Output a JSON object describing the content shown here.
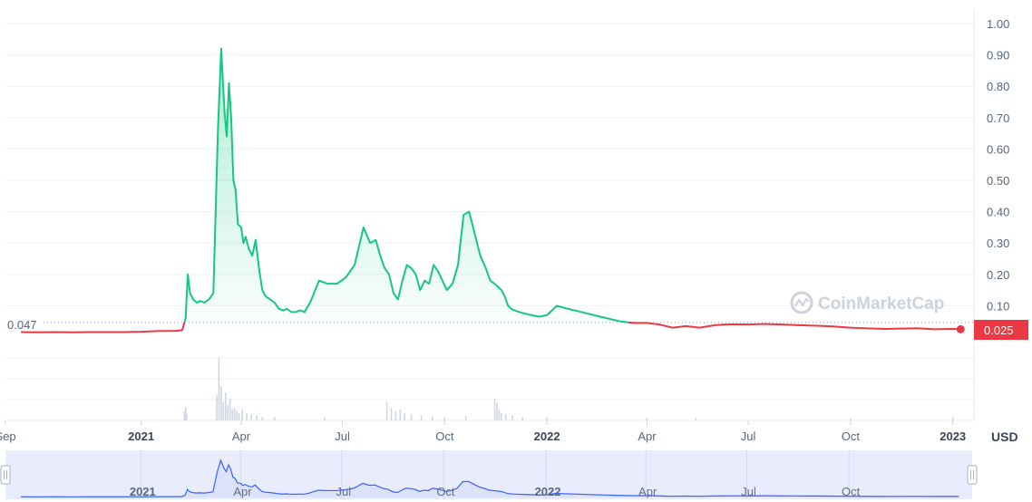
{
  "chart_data": {
    "type": "line",
    "unit": "USD",
    "reference_line": {
      "value": 0.047,
      "label": "0.047"
    },
    "current_price": {
      "value": 0.025,
      "label": "0.025"
    },
    "colors": {
      "above": "#16c784",
      "below": "#ea3943",
      "grid": "#eff2f5",
      "volume": "#cfd6e4",
      "navigator_line": "#3861fb",
      "navigator_fill": "#e8ecfc"
    },
    "ylim": [
      0,
      1.0
    ],
    "y_ticks": [
      "1.00",
      "0.90",
      "0.80",
      "0.70",
      "0.60",
      "0.50",
      "0.40",
      "0.30",
      "0.20",
      "0.10"
    ],
    "x_ticks": [
      {
        "label": "Sep",
        "date": "2020-09-01",
        "bold": false
      },
      {
        "label": "2021",
        "date": "2021-01-01",
        "bold": true
      },
      {
        "label": "Apr",
        "date": "2021-04-01",
        "bold": false
      },
      {
        "label": "Jul",
        "date": "2021-07-01",
        "bold": false
      },
      {
        "label": "Oct",
        "date": "2021-10-01",
        "bold": false
      },
      {
        "label": "2022",
        "date": "2022-01-01",
        "bold": true
      },
      {
        "label": "Apr",
        "date": "2022-04-01",
        "bold": false
      },
      {
        "label": "Jul",
        "date": "2022-07-01",
        "bold": false
      },
      {
        "label": "Oct",
        "date": "2022-10-01",
        "bold": false
      },
      {
        "label": "2023",
        "date": "2023-01-01",
        "bold": true
      }
    ],
    "navigator_ticks": [
      {
        "label": "2021",
        "date": "2021-01-01",
        "bold": true
      },
      {
        "label": "Apr",
        "date": "2021-04-01",
        "bold": false
      },
      {
        "label": "Jul",
        "date": "2021-07-01",
        "bold": false
      },
      {
        "label": "Oct",
        "date": "2021-10-01",
        "bold": false
      },
      {
        "label": "2022",
        "date": "2022-01-01",
        "bold": true
      },
      {
        "label": "Apr",
        "date": "2022-04-01",
        "bold": false
      },
      {
        "label": "Jul",
        "date": "2022-07-01",
        "bold": false
      },
      {
        "label": "Oct",
        "date": "2022-10-01",
        "bold": false
      }
    ],
    "series": [
      {
        "x": [
          "2020-09-15",
          "2020-10-01",
          "2020-10-15",
          "2020-11-01",
          "2020-11-15",
          "2020-12-01",
          "2020-12-15",
          "2021-01-01",
          "2021-01-15",
          "2021-02-01",
          "2021-02-07",
          "2021-02-10",
          "2021-02-12",
          "2021-02-14",
          "2021-02-17",
          "2021-02-20",
          "2021-02-23",
          "2021-02-27",
          "2021-03-03",
          "2021-03-07",
          "2021-03-11",
          "2021-03-14",
          "2021-03-17",
          "2021-03-19",
          "2021-03-21",
          "2021-03-23",
          "2021-03-25",
          "2021-03-27",
          "2021-03-29",
          "2021-04-01",
          "2021-04-03",
          "2021-04-05",
          "2021-04-08",
          "2021-04-11",
          "2021-04-14",
          "2021-04-17",
          "2021-04-20",
          "2021-04-23",
          "2021-04-27",
          "2021-05-01",
          "2021-05-05",
          "2021-05-09",
          "2021-05-12",
          "2021-05-16",
          "2021-05-20",
          "2021-05-24",
          "2021-05-28",
          "2021-06-02",
          "2021-06-10",
          "2021-06-18",
          "2021-06-26",
          "2021-07-04",
          "2021-07-12",
          "2021-07-20",
          "2021-07-26",
          "2021-07-31",
          "2021-08-04",
          "2021-08-08",
          "2021-08-12",
          "2021-08-16",
          "2021-08-20",
          "2021-08-24",
          "2021-08-28",
          "2021-09-01",
          "2021-09-05",
          "2021-09-09",
          "2021-09-13",
          "2021-09-17",
          "2021-09-21",
          "2021-09-25",
          "2021-09-29",
          "2021-10-03",
          "2021-10-08",
          "2021-10-13",
          "2021-10-18",
          "2021-10-23",
          "2021-10-28",
          "2021-11-02",
          "2021-11-07",
          "2021-11-11",
          "2021-11-15",
          "2021-11-18",
          "2021-11-21",
          "2021-11-24",
          "2021-11-27",
          "2021-11-30",
          "2021-12-03",
          "2021-12-07",
          "2021-12-12",
          "2021-12-18",
          "2021-12-25",
          "2022-01-01",
          "2022-01-10",
          "2022-01-20",
          "2022-02-01",
          "2022-02-12",
          "2022-02-24",
          "2022-03-08",
          "2022-03-20",
          "2022-04-01",
          "2022-04-12",
          "2022-04-24",
          "2022-05-06",
          "2022-05-18",
          "2022-06-01",
          "2022-06-10",
          "2022-06-20",
          "2022-07-01",
          "2022-07-15",
          "2022-08-01",
          "2022-08-15",
          "2022-09-01",
          "2022-09-15",
          "2022-10-01",
          "2022-10-15",
          "2022-11-01",
          "2022-11-15",
          "2022-12-01",
          "2022-12-15",
          "2023-01-01",
          "2023-01-08"
        ],
        "y": [
          0.016,
          0.015,
          0.016,
          0.015,
          0.016,
          0.016,
          0.016,
          0.017,
          0.019,
          0.02,
          0.022,
          0.06,
          0.2,
          0.14,
          0.12,
          0.11,
          0.115,
          0.11,
          0.12,
          0.14,
          0.65,
          0.92,
          0.72,
          0.64,
          0.81,
          0.7,
          0.5,
          0.47,
          0.36,
          0.35,
          0.3,
          0.32,
          0.28,
          0.26,
          0.31,
          0.22,
          0.15,
          0.13,
          0.12,
          0.11,
          0.09,
          0.085,
          0.09,
          0.08,
          0.08,
          0.085,
          0.08,
          0.11,
          0.18,
          0.17,
          0.17,
          0.19,
          0.23,
          0.35,
          0.3,
          0.31,
          0.26,
          0.22,
          0.2,
          0.14,
          0.12,
          0.18,
          0.23,
          0.22,
          0.2,
          0.15,
          0.18,
          0.17,
          0.23,
          0.21,
          0.18,
          0.15,
          0.17,
          0.23,
          0.39,
          0.4,
          0.33,
          0.26,
          0.22,
          0.18,
          0.17,
          0.16,
          0.15,
          0.13,
          0.1,
          0.09,
          0.085,
          0.08,
          0.075,
          0.07,
          0.065,
          0.07,
          0.1,
          0.09,
          0.08,
          0.07,
          0.06,
          0.05,
          0.045,
          0.045,
          0.04,
          0.03,
          0.035,
          0.03,
          0.038,
          0.04,
          0.041,
          0.04,
          0.042,
          0.04,
          0.038,
          0.036,
          0.034,
          0.03,
          0.028,
          0.026,
          0.027,
          0.028,
          0.025,
          0.026,
          0.025
        ]
      }
    ],
    "volume_bars": {
      "x": [
        "2021-02-09",
        "2021-02-10",
        "2021-02-11",
        "2021-03-10",
        "2021-03-12",
        "2021-03-14",
        "2021-03-16",
        "2021-03-18",
        "2021-03-20",
        "2021-03-22",
        "2021-03-24",
        "2021-03-26",
        "2021-03-28",
        "2021-03-30",
        "2021-04-02",
        "2021-04-06",
        "2021-04-10",
        "2021-04-15",
        "2021-04-20",
        "2021-05-01",
        "2021-06-15",
        "2021-08-10",
        "2021-08-14",
        "2021-08-18",
        "2021-08-22",
        "2021-08-26",
        "2021-09-01",
        "2021-09-10",
        "2021-09-20",
        "2021-10-01",
        "2021-10-20",
        "2021-11-15",
        "2021-11-17",
        "2021-11-19",
        "2021-11-21",
        "2021-11-25",
        "2021-12-01",
        "2021-12-10",
        "2022-01-01",
        "2022-04-01",
        "2022-05-15",
        "2022-10-01",
        "2023-01-01"
      ],
      "y": [
        0.15,
        0.22,
        0.1,
        0.4,
        1.0,
        0.55,
        0.3,
        0.45,
        0.25,
        0.35,
        0.18,
        0.2,
        0.15,
        0.12,
        0.18,
        0.12,
        0.1,
        0.08,
        0.06,
        0.05,
        0.05,
        0.3,
        0.2,
        0.15,
        0.18,
        0.12,
        0.1,
        0.08,
        0.06,
        0.05,
        0.08,
        0.35,
        0.28,
        0.18,
        0.12,
        0.1,
        0.08,
        0.06,
        0.05,
        0.04,
        0.04,
        0.03,
        0.05
      ]
    },
    "watermark": "CoinMarketCap"
  }
}
